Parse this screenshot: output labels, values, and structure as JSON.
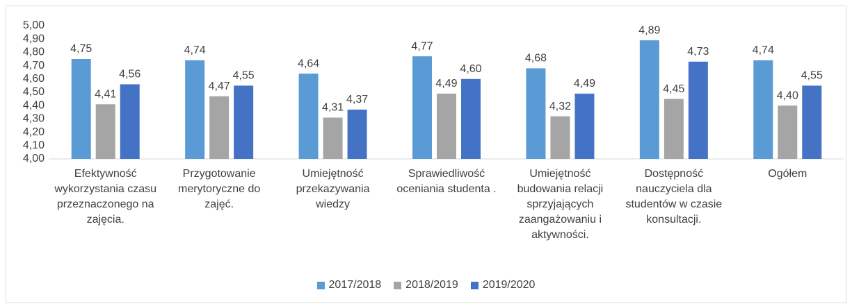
{
  "chart_data": {
    "type": "bar",
    "categories": [
      "Efektywność wykorzystania czasu przeznaczonego na zajęcia.",
      "Przygotowanie merytoryczne do zajęć.",
      "Umiejętność przekazywania wiedzy",
      "Sprawiedliwość oceniania studenta .",
      "Umiejętność budowania relacji sprzyjających zaangażowaniu i aktywności.",
      "Dostępność nauczyciela dla studentów w czasie konsultacji.",
      "Ogółem"
    ],
    "series": [
      {
        "name": "2017/2018",
        "color": "#5b9bd5",
        "values": [
          4.75,
          4.74,
          4.64,
          4.77,
          4.68,
          4.89,
          4.74
        ],
        "value_labels": [
          "4,75",
          "4,74",
          "4,64",
          "4,77",
          "4,68",
          "4,89",
          "4,74"
        ]
      },
      {
        "name": "2018/2019",
        "color": "#a5a5a5",
        "values": [
          4.41,
          4.47,
          4.31,
          4.49,
          4.32,
          4.45,
          4.4
        ],
        "value_labels": [
          "4,41",
          "4,47",
          "4,31",
          "4,49",
          "4,32",
          "4,45",
          "4,40"
        ]
      },
      {
        "name": "2019/2020",
        "color": "#4472c4",
        "values": [
          4.56,
          4.55,
          4.37,
          4.6,
          4.49,
          4.73,
          4.55
        ],
        "value_labels": [
          "4,56",
          "4,55",
          "4,37",
          "4,60",
          "4,49",
          "4,73",
          "4,55"
        ]
      }
    ],
    "ylim": [
      4.0,
      5.0
    ],
    "yticks": [
      {
        "value": 4.0,
        "label": "4,00"
      },
      {
        "value": 4.1,
        "label": "4,10"
      },
      {
        "value": 4.2,
        "label": "4,20"
      },
      {
        "value": 4.3,
        "label": "4,30"
      },
      {
        "value": 4.4,
        "label": "4,40"
      },
      {
        "value": 4.5,
        "label": "4,50"
      },
      {
        "value": 4.6,
        "label": "4,60"
      },
      {
        "value": 4.7,
        "label": "4,70"
      },
      {
        "value": 4.8,
        "label": "4,80"
      },
      {
        "value": 4.9,
        "label": "4,90"
      },
      {
        "value": 5.0,
        "label": "5,00"
      }
    ],
    "grid": false,
    "legend": "bottom"
  }
}
